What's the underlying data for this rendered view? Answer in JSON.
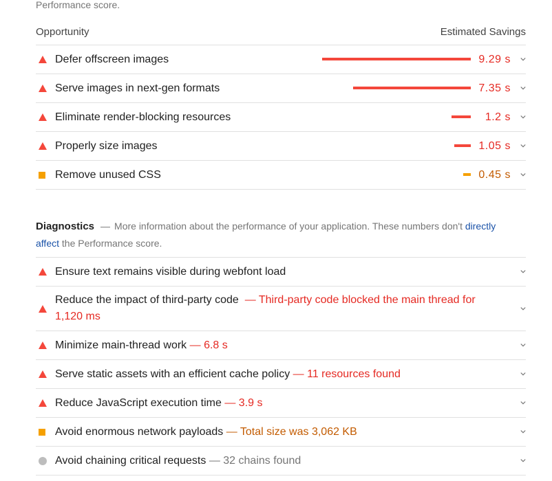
{
  "top_note": "Performance score.",
  "opportunities": {
    "column_left": "Opportunity",
    "column_right": "Estimated Savings",
    "items": [
      {
        "title": "Defer offscreen images",
        "saving": "9.29 s",
        "status": "fail",
        "savings_seconds": 9.29
      },
      {
        "title": "Serve images in next-gen formats",
        "saving": "7.35 s",
        "status": "fail",
        "savings_seconds": 7.35
      },
      {
        "title": "Eliminate render-blocking resources",
        "saving": "1.2 s",
        "status": "fail",
        "savings_seconds": 1.2
      },
      {
        "title": "Properly size images",
        "saving": "1.05 s",
        "status": "fail",
        "savings_seconds": 1.05
      },
      {
        "title": "Remove unused CSS",
        "saving": "0.45 s",
        "status": "average",
        "savings_seconds": 0.45
      }
    ]
  },
  "diagnostics": {
    "title": "Diagnostics",
    "dash": "—",
    "desc_before": "More information about the performance of your application. These numbers don't",
    "desc_link": "directly affect",
    "desc_after": "the Performance score.",
    "items": [
      {
        "title": "Ensure text remains visible during webfont load",
        "detail": "",
        "status": "fail"
      },
      {
        "title": "Reduce the impact of third-party code",
        "detail": "— Third-party code blocked the main thread for 1,120 ms",
        "status": "fail"
      },
      {
        "title": "Minimize main-thread work",
        "detail": "— 6.8 s",
        "status": "fail"
      },
      {
        "title": "Serve static assets with an efficient cache policy",
        "detail": "— 11 resources found",
        "status": "fail"
      },
      {
        "title": "Reduce JavaScript execution time",
        "detail": "— 3.9 s",
        "status": "fail"
      },
      {
        "title": "Avoid enormous network payloads",
        "detail": "— Total size was 3,062 KB",
        "status": "average"
      },
      {
        "title": "Avoid chaining critical requests",
        "detail": "— 32 chains found",
        "status": "informative"
      }
    ]
  },
  "colors": {
    "fail": "#f4473b",
    "average": "#f5a000",
    "informative": "#bdbdbd"
  },
  "icons": {
    "fail": "triangle-fail-icon",
    "average": "square-average-icon",
    "informative": "circle-info-icon",
    "expand": "chevron-down-icon"
  }
}
